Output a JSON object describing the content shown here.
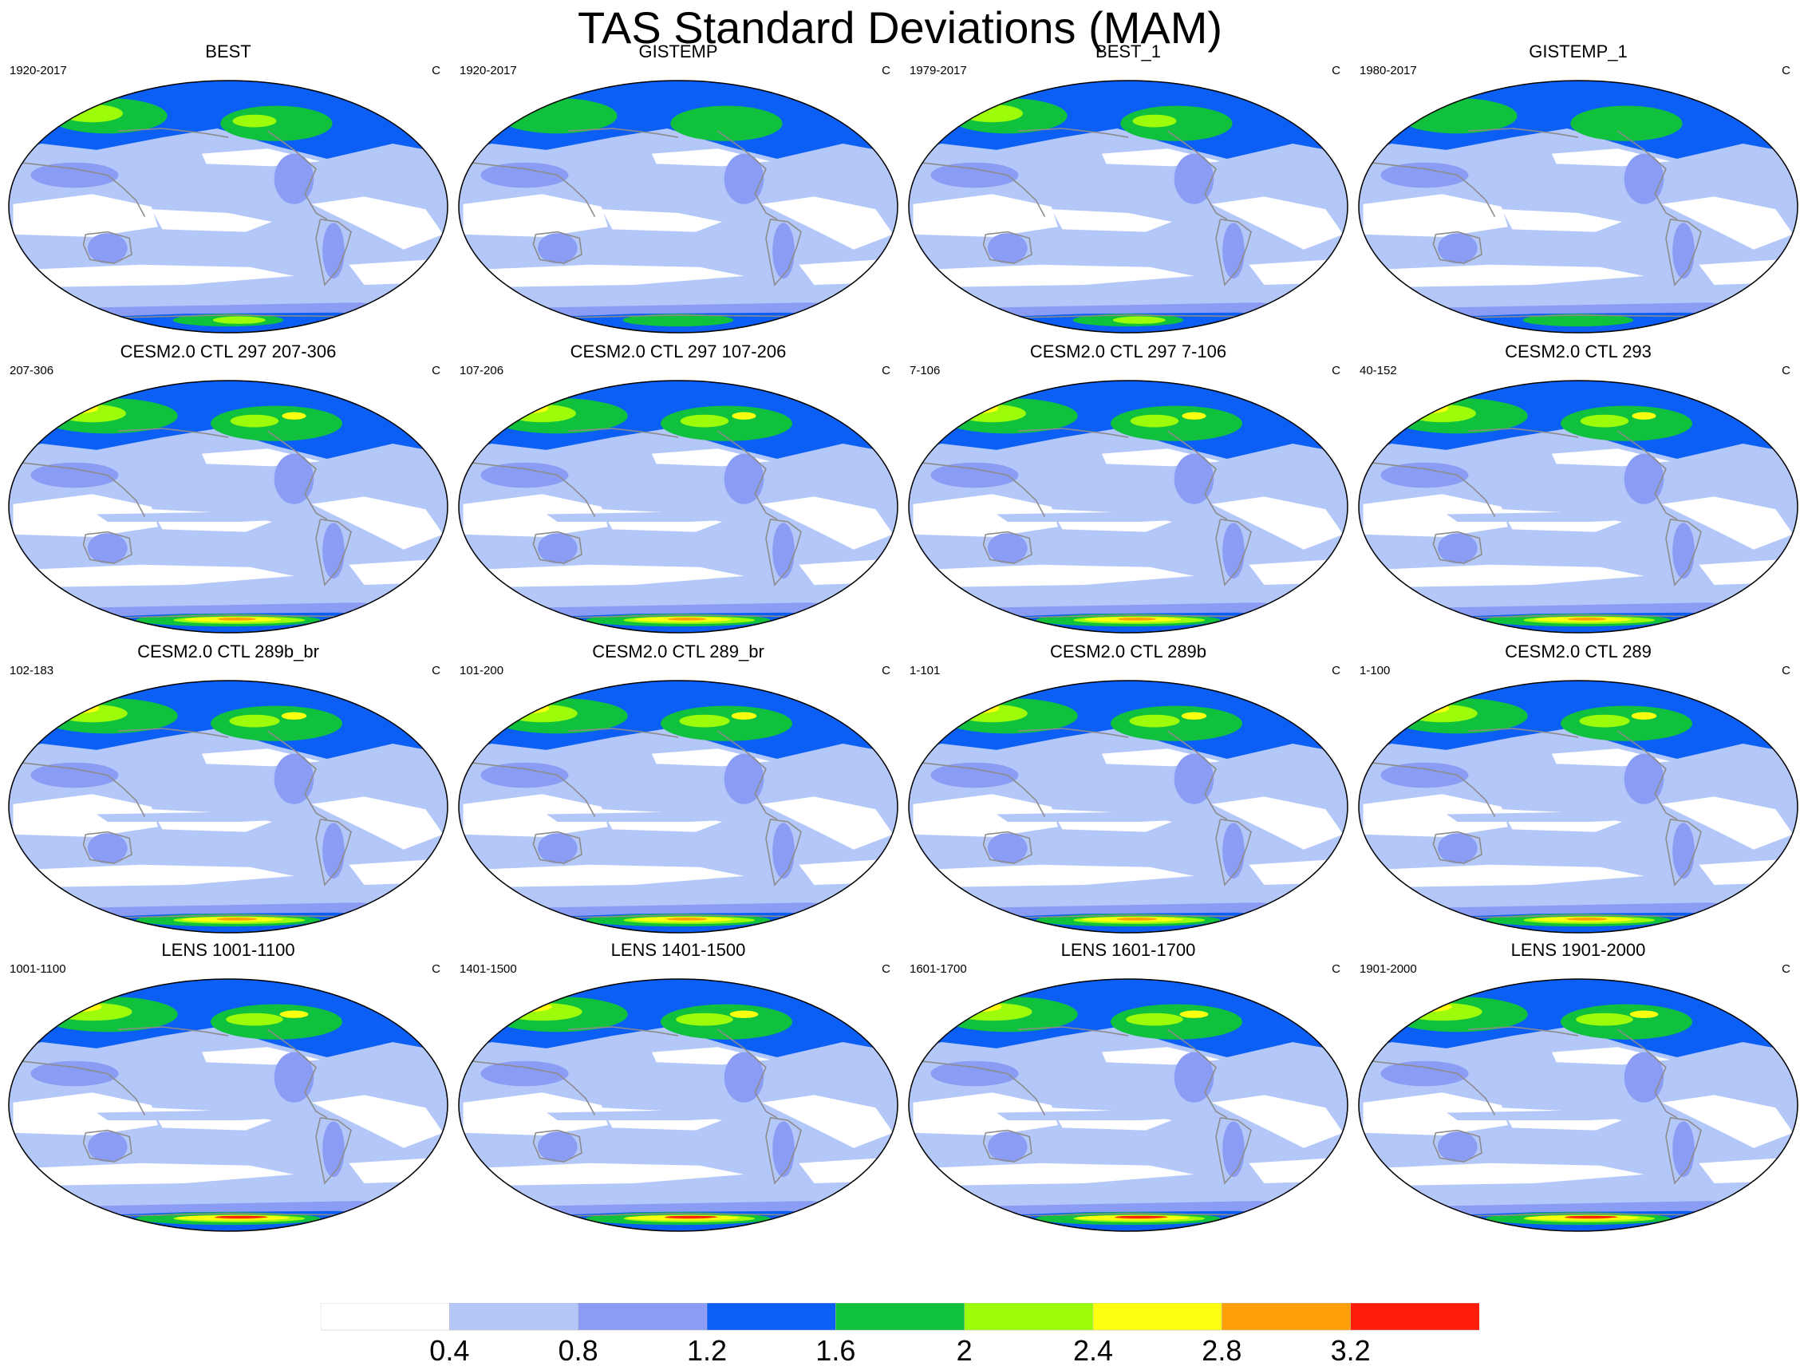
{
  "title": "TAS Standard Deviations (MAM)",
  "units": "C",
  "colors": {
    "levels": [
      "#ffffff",
      "#b4c7f9",
      "#8b9cf4",
      "#0b5ff5",
      "#0fc13c",
      "#9cfc0a",
      "#ffff10",
      "#ffa00a",
      "#ff1e0c"
    ],
    "coastline": "#8c8c8c",
    "outline": "#000000"
  },
  "colorbar": {
    "labels": [
      "0.4",
      "0.8",
      "1.2",
      "1.6",
      "2",
      "2.4",
      "2.8",
      "3.2"
    ]
  },
  "panels": [
    {
      "title": "BEST",
      "period": "1920-2017",
      "units": "C",
      "kind": "obs",
      "intensity": 1.0
    },
    {
      "title": "GISTEMP",
      "period": "1920-2017",
      "units": "C",
      "kind": "obs",
      "intensity": 0.7
    },
    {
      "title": "BEST_1",
      "period": "1979-2017",
      "units": "C",
      "kind": "obs",
      "intensity": 1.0
    },
    {
      "title": "GISTEMP_1",
      "period": "1980-2017",
      "units": "C",
      "kind": "obs",
      "intensity": 0.7
    },
    {
      "title": "CESM2.0 CTL 297 207-306",
      "period": "207-306",
      "units": "C",
      "kind": "model",
      "intensity": 1.1
    },
    {
      "title": "CESM2.0 CTL 297 107-206",
      "period": "107-206",
      "units": "C",
      "kind": "model",
      "intensity": 1.1
    },
    {
      "title": "CESM2.0 CTL 297 7-106",
      "period": "7-106",
      "units": "C",
      "kind": "model",
      "intensity": 1.1
    },
    {
      "title": "CESM2.0 CTL 293",
      "period": "40-152",
      "units": "C",
      "kind": "model",
      "intensity": 1.1
    },
    {
      "title": "CESM2.0 CTL 289b_br",
      "period": "102-183",
      "units": "C",
      "kind": "model",
      "intensity": 1.15
    },
    {
      "title": "CESM2.0 CTL 289_br",
      "period": "101-200",
      "units": "C",
      "kind": "model",
      "intensity": 1.15
    },
    {
      "title": "CESM2.0 CTL 289b",
      "period": "1-101",
      "units": "C",
      "kind": "model",
      "intensity": 1.15
    },
    {
      "title": "CESM2.0 CTL 289",
      "period": "1-100",
      "units": "C",
      "kind": "model",
      "intensity": 1.15
    },
    {
      "title": "LENS 1001-1100",
      "period": "1001-1100",
      "units": "C",
      "kind": "lens",
      "intensity": 1.3
    },
    {
      "title": "LENS 1401-1500",
      "period": "1401-1500",
      "units": "C",
      "kind": "lens",
      "intensity": 1.3
    },
    {
      "title": "LENS 1601-1700",
      "period": "1601-1700",
      "units": "C",
      "kind": "lens",
      "intensity": 1.3
    },
    {
      "title": "LENS 1901-2000",
      "period": "1901-2000",
      "units": "C",
      "kind": "lens",
      "intensity": 1.3
    }
  ]
}
